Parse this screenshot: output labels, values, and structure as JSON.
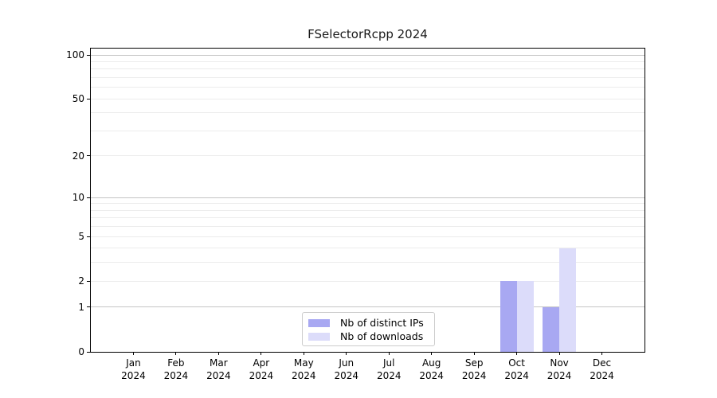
{
  "chart_data": {
    "type": "bar",
    "title": "FSelectorRcpp 2024",
    "xlabel": "",
    "ylabel": "",
    "categories": [
      "Jan",
      "Feb",
      "Mar",
      "Apr",
      "May",
      "Jun",
      "Jul",
      "Aug",
      "Sep",
      "Oct",
      "Nov",
      "Dec"
    ],
    "x_year_label": "2024",
    "series": [
      {
        "name": "Nb of distinct IPs",
        "color": "#a8a8f2",
        "values": [
          0,
          0,
          0,
          0,
          0,
          0,
          0,
          0,
          0,
          2,
          1,
          0
        ]
      },
      {
        "name": "Nb of downloads",
        "color": "#dcdcfa",
        "values": [
          0,
          0,
          0,
          0,
          0,
          0,
          0,
          0,
          0,
          2,
          4,
          0
        ]
      }
    ],
    "y_scale": "log1p",
    "ylim": [
      0,
      112
    ],
    "y_ticks": [
      0,
      1,
      2,
      5,
      10,
      20,
      50,
      100
    ],
    "grid": {
      "major_values": [
        1,
        10,
        100
      ],
      "minor_values": [
        2,
        3,
        4,
        5,
        6,
        7,
        8,
        9,
        20,
        30,
        40,
        50,
        60,
        70,
        80,
        90
      ]
    },
    "legend_position": "bottom-center"
  },
  "colors": {
    "bar_distinct_ips": "#a8a8f2",
    "bar_downloads": "#dcdcfa",
    "grid_major": "#c4c4c4",
    "grid_minor": "#ececec",
    "axis": "#000000",
    "legend_border": "#cccccc",
    "background": "#ffffff",
    "text": "#1a1a1a"
  }
}
